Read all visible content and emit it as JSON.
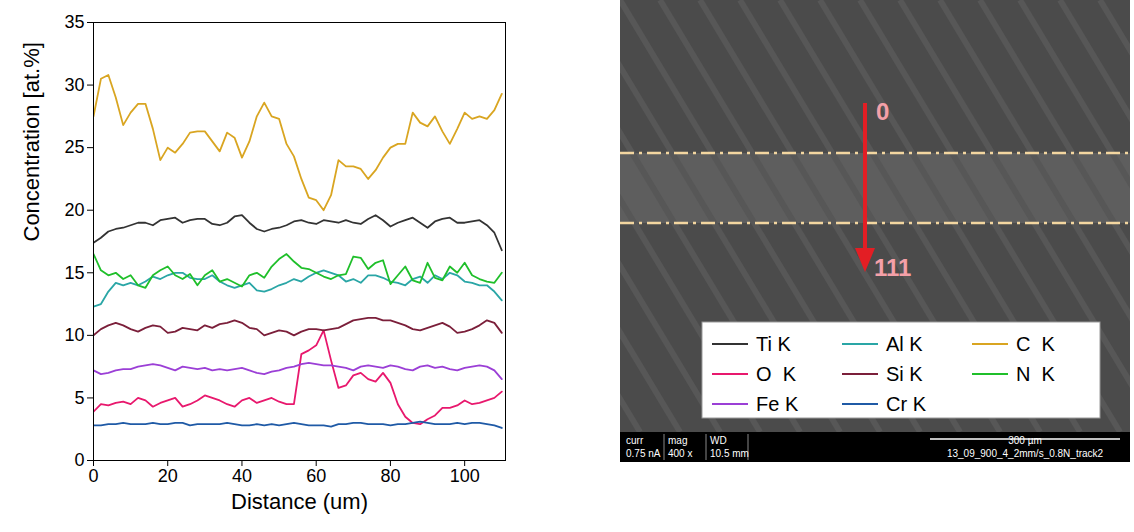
{
  "chart_data": {
    "type": "line",
    "xlabel": "Distance (um)",
    "ylabel": "Concentration [at.%]",
    "x": [
      0,
      2,
      4,
      6,
      8,
      10,
      12,
      14,
      16,
      18,
      20,
      22,
      24,
      26,
      28,
      30,
      32,
      34,
      36,
      38,
      40,
      42,
      44,
      46,
      48,
      50,
      52,
      54,
      56,
      58,
      60,
      62,
      64,
      66,
      68,
      70,
      72,
      74,
      76,
      78,
      80,
      82,
      84,
      86,
      88,
      90,
      92,
      94,
      96,
      98,
      100,
      102,
      104,
      106,
      108,
      110
    ],
    "xlim": [
      0,
      111
    ],
    "xticks": [
      0,
      20,
      40,
      60,
      80,
      100
    ],
    "ylim": [
      0,
      35
    ],
    "yticks": [
      0,
      5,
      10,
      15,
      20,
      25,
      30,
      35
    ],
    "grid": false,
    "legend": "right",
    "series": [
      {
        "name": "Ti K",
        "color": "#333333",
        "values": [
          17.4,
          17.8,
          18.3,
          18.5,
          18.6,
          18.8,
          19.0,
          19.0,
          18.8,
          19.2,
          19.3,
          19.4,
          19.0,
          19.2,
          19.3,
          19.3,
          18.9,
          18.8,
          19.0,
          19.5,
          19.6,
          19.0,
          18.5,
          18.3,
          18.5,
          18.6,
          18.8,
          19.1,
          19.2,
          19.0,
          18.9,
          19.2,
          19.1,
          19.0,
          19.2,
          19.0,
          18.9,
          19.3,
          19.6,
          19.2,
          18.7,
          19.0,
          19.2,
          19.4,
          19.0,
          18.6,
          19.1,
          19.3,
          19.4,
          19.0,
          19.0,
          19.1,
          19.2,
          18.8,
          18.2,
          16.8
        ]
      },
      {
        "name": "Al K",
        "color": "#2aa6a6",
        "values": [
          12.3,
          12.5,
          13.5,
          14.2,
          14.0,
          14.2,
          14.0,
          14.3,
          14.7,
          14.5,
          14.8,
          15.0,
          15.0,
          14.6,
          14.5,
          14.5,
          14.8,
          14.3,
          14.0,
          13.8,
          14.0,
          14.2,
          13.6,
          13.5,
          13.7,
          14.0,
          14.2,
          14.5,
          14.3,
          14.7,
          15.0,
          15.2,
          15.0,
          14.8,
          14.3,
          14.5,
          14.2,
          14.8,
          14.8,
          14.6,
          14.3,
          14.2,
          14.0,
          14.5,
          14.7,
          14.2,
          14.8,
          14.5,
          15.0,
          14.8,
          14.3,
          14.2,
          14.0,
          14.0,
          13.5,
          12.8
        ]
      },
      {
        "name": "C  K",
        "color": "#d9a521",
        "values": [
          27.5,
          30.5,
          30.8,
          29.0,
          26.8,
          27.8,
          28.5,
          28.5,
          26.5,
          24.0,
          25.0,
          24.6,
          25.3,
          26.2,
          26.3,
          26.3,
          25.5,
          24.7,
          26.2,
          25.8,
          24.2,
          25.5,
          27.5,
          28.6,
          27.5,
          27.3,
          25.3,
          24.3,
          22.5,
          21.0,
          20.8,
          20.0,
          21.2,
          24.0,
          23.5,
          23.5,
          23.3,
          22.5,
          23.2,
          24.2,
          25.0,
          25.3,
          25.3,
          27.8,
          27.0,
          26.7,
          27.5,
          26.3,
          25.3,
          26.5,
          27.8,
          27.3,
          27.5,
          27.3,
          28.0,
          29.3
        ]
      },
      {
        "name": "O  K",
        "color": "#e8186d",
        "values": [
          3.9,
          4.5,
          4.4,
          4.6,
          4.7,
          4.5,
          5.0,
          4.8,
          4.3,
          4.6,
          4.8,
          5.0,
          4.3,
          4.5,
          4.8,
          5.2,
          5.0,
          4.8,
          4.5,
          4.3,
          4.8,
          5.0,
          4.6,
          4.8,
          5.0,
          4.7,
          4.5,
          4.5,
          8.5,
          8.8,
          9.2,
          10.4,
          8.0,
          5.8,
          6.0,
          6.8,
          7.0,
          6.5,
          6.3,
          7.0,
          6.2,
          4.5,
          3.5,
          3.0,
          2.9,
          3.3,
          3.6,
          4.2,
          4.2,
          4.4,
          4.8,
          4.5,
          4.6,
          4.8,
          5.0,
          5.5
        ]
      },
      {
        "name": "Si K",
        "color": "#7b1f3a",
        "values": [
          10.0,
          10.5,
          10.8,
          11.0,
          10.8,
          10.5,
          10.3,
          10.6,
          10.8,
          10.7,
          10.2,
          10.3,
          10.6,
          10.5,
          10.4,
          10.8,
          10.6,
          10.9,
          11.0,
          11.2,
          11.0,
          10.6,
          10.5,
          10.0,
          10.2,
          10.4,
          10.3,
          10.0,
          10.3,
          10.5,
          10.5,
          10.4,
          10.5,
          10.6,
          10.9,
          11.2,
          11.3,
          11.4,
          11.4,
          11.2,
          11.2,
          11.0,
          10.8,
          10.5,
          10.4,
          10.6,
          10.8,
          11.0,
          10.7,
          10.2,
          10.3,
          10.5,
          10.8,
          11.2,
          11.0,
          10.2
        ]
      },
      {
        "name": "N  K",
        "color": "#1fbf2a",
        "values": [
          16.5,
          15.2,
          14.8,
          15.0,
          14.5,
          14.8,
          14.0,
          13.8,
          14.8,
          15.2,
          15.5,
          14.8,
          14.5,
          14.9,
          14.0,
          14.8,
          15.2,
          14.3,
          14.5,
          14.2,
          13.9,
          14.8,
          15.0,
          14.6,
          15.5,
          16.1,
          16.5,
          15.9,
          15.4,
          15.3,
          15.0,
          14.7,
          14.5,
          14.8,
          14.9,
          16.3,
          16.2,
          15.3,
          15.8,
          16.0,
          14.1,
          14.8,
          15.5,
          14.4,
          14.2,
          15.8,
          14.6,
          14.4,
          15.5,
          15.0,
          15.8,
          14.8,
          14.5,
          14.3,
          14.2,
          15.0
        ]
      },
      {
        "name": "Fe K",
        "color": "#9b3fd6",
        "values": [
          7.2,
          6.9,
          7.0,
          7.2,
          7.3,
          7.3,
          7.5,
          7.6,
          7.7,
          7.6,
          7.4,
          7.2,
          7.5,
          7.4,
          7.3,
          7.4,
          7.2,
          7.3,
          7.2,
          7.3,
          7.4,
          7.2,
          7.0,
          6.9,
          7.1,
          7.2,
          7.4,
          7.5,
          7.7,
          7.8,
          7.7,
          7.6,
          7.6,
          7.5,
          7.4,
          7.2,
          7.5,
          7.6,
          7.5,
          7.4,
          7.6,
          7.5,
          7.3,
          7.2,
          7.5,
          7.6,
          7.4,
          7.5,
          7.3,
          7.2,
          7.4,
          7.5,
          7.6,
          7.5,
          7.2,
          6.5
        ]
      },
      {
        "name": "Cr K",
        "color": "#1f5aa6",
        "values": [
          2.8,
          2.8,
          2.9,
          2.9,
          3.0,
          2.9,
          2.9,
          2.9,
          3.0,
          2.9,
          2.9,
          3.0,
          3.0,
          2.8,
          2.9,
          2.9,
          2.9,
          2.9,
          3.0,
          2.9,
          2.8,
          2.8,
          2.9,
          2.8,
          2.9,
          2.8,
          2.9,
          3.0,
          2.9,
          2.8,
          2.8,
          2.8,
          2.7,
          2.9,
          2.9,
          3.0,
          3.0,
          2.9,
          2.9,
          2.9,
          2.8,
          2.9,
          2.9,
          3.0,
          3.1,
          3.0,
          2.9,
          2.9,
          2.9,
          3.0,
          2.9,
          3.0,
          3.0,
          2.9,
          2.8,
          2.6
        ]
      }
    ]
  },
  "micrograph": {
    "start_label": "0",
    "end_label": "111",
    "info": [
      {
        "label": "curr",
        "value": "0.75 nA"
      },
      {
        "label": "mag",
        "value": "400 x"
      },
      {
        "label": "WD",
        "value": "10.5 mm"
      }
    ],
    "scale_bar": "300 µm",
    "track": "13_09_900_4_2mm/s_0.8N_track2"
  }
}
